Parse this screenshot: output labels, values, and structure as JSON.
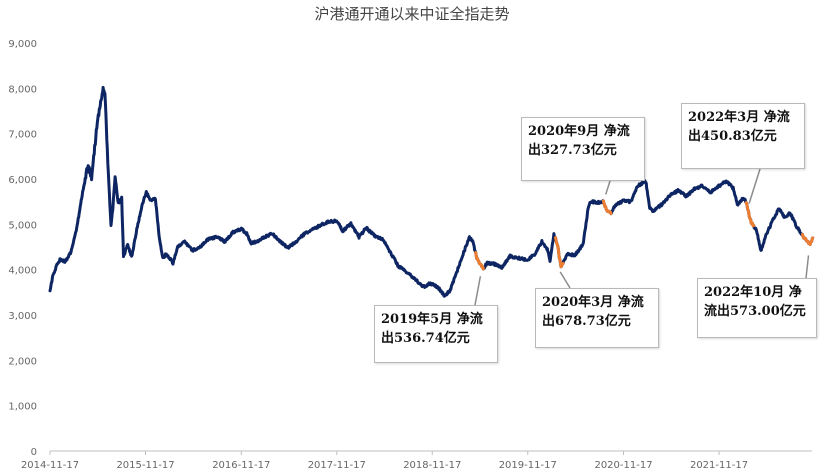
{
  "chart_data": {
    "type": "line",
    "title": "沪港通开通以来中证全指走势",
    "ylim": [
      0,
      9000
    ],
    "y_ticks": [
      "0",
      "1,000",
      "2,000",
      "3,000",
      "4,000",
      "5,000",
      "6,000",
      "7,000",
      "8,000",
      "9,000"
    ],
    "x_ticks": [
      "2014-11-17",
      "2015-11-17",
      "2016-11-17",
      "2017-11-17",
      "2018-11-17",
      "2019-11-17",
      "2020-11-17",
      "2021-11-17"
    ],
    "grid": false,
    "legend": "none",
    "colors": {
      "line": "#0d2562",
      "highlight": "#ed7d31",
      "axis": "#bfbfbf",
      "leader": "#8c8c8c"
    },
    "series": [
      {
        "values": [
          [
            "2014-11-17",
            3530
          ],
          [
            "2014-11-28",
            3860
          ],
          [
            "2014-12-10",
            4060
          ],
          [
            "2014-12-25",
            4220
          ],
          [
            "2015-01-15",
            4180
          ],
          [
            "2015-02-05",
            4380
          ],
          [
            "2015-03-01",
            4980
          ],
          [
            "2015-03-20",
            5650
          ],
          [
            "2015-04-10",
            6280
          ],
          [
            "2015-04-25",
            6050
          ],
          [
            "2015-05-15",
            7150
          ],
          [
            "2015-05-28",
            7650
          ],
          [
            "2015-06-08",
            7950
          ],
          [
            "2015-06-15",
            7900
          ],
          [
            "2015-06-22",
            6900
          ],
          [
            "2015-06-30",
            5900
          ],
          [
            "2015-07-08",
            4980
          ],
          [
            "2015-07-15",
            5350
          ],
          [
            "2015-07-24",
            6050
          ],
          [
            "2015-08-05",
            5450
          ],
          [
            "2015-08-18",
            5580
          ],
          [
            "2015-08-25",
            4300
          ],
          [
            "2015-09-10",
            4550
          ],
          [
            "2015-09-25",
            4280
          ],
          [
            "2015-10-15",
            4900
          ],
          [
            "2015-11-05",
            5450
          ],
          [
            "2015-11-20",
            5700
          ],
          [
            "2015-12-05",
            5550
          ],
          [
            "2015-12-25",
            5550
          ],
          [
            "2016-01-08",
            4750
          ],
          [
            "2016-01-22",
            4250
          ],
          [
            "2016-02-05",
            4350
          ],
          [
            "2016-03-01",
            4150
          ],
          [
            "2016-03-20",
            4500
          ],
          [
            "2016-04-15",
            4620
          ],
          [
            "2016-05-15",
            4420
          ],
          [
            "2016-06-15",
            4520
          ],
          [
            "2016-07-15",
            4680
          ],
          [
            "2016-08-15",
            4720
          ],
          [
            "2016-09-15",
            4620
          ],
          [
            "2016-10-15",
            4820
          ],
          [
            "2016-11-17",
            4900
          ],
          [
            "2016-12-10",
            4780
          ],
          [
            "2016-12-25",
            4580
          ],
          [
            "2017-01-15",
            4620
          ],
          [
            "2017-02-15",
            4720
          ],
          [
            "2017-03-15",
            4800
          ],
          [
            "2017-04-15",
            4620
          ],
          [
            "2017-05-15",
            4480
          ],
          [
            "2017-06-15",
            4620
          ],
          [
            "2017-07-15",
            4780
          ],
          [
            "2017-08-15",
            4880
          ],
          [
            "2017-09-15",
            4980
          ],
          [
            "2017-10-15",
            5050
          ],
          [
            "2017-11-17",
            5080
          ],
          [
            "2017-12-10",
            4850
          ],
          [
            "2018-01-10",
            5020
          ],
          [
            "2018-02-10",
            4720
          ],
          [
            "2018-03-10",
            4920
          ],
          [
            "2018-04-10",
            4750
          ],
          [
            "2018-05-10",
            4680
          ],
          [
            "2018-06-10",
            4380
          ],
          [
            "2018-07-10",
            4080
          ],
          [
            "2018-08-10",
            3950
          ],
          [
            "2018-09-10",
            3800
          ],
          [
            "2018-10-15",
            3620
          ],
          [
            "2018-11-10",
            3700
          ],
          [
            "2018-12-10",
            3600
          ],
          [
            "2019-01-04",
            3420
          ],
          [
            "2019-01-25",
            3550
          ],
          [
            "2019-02-25",
            4050
          ],
          [
            "2019-03-15",
            4350
          ],
          [
            "2019-04-08",
            4700
          ],
          [
            "2019-04-22",
            4620
          ],
          [
            "2019-05-06",
            4250
          ],
          [
            "2019-05-31",
            4020
          ],
          [
            "2019-06-15",
            4150
          ],
          [
            "2019-07-15",
            4120
          ],
          [
            "2019-08-10",
            4050
          ],
          [
            "2019-09-10",
            4300
          ],
          [
            "2019-10-15",
            4250
          ],
          [
            "2019-11-17",
            4220
          ],
          [
            "2019-12-15",
            4350
          ],
          [
            "2020-01-10",
            4620
          ],
          [
            "2020-01-31",
            4450
          ],
          [
            "2020-02-10",
            4200
          ],
          [
            "2020-02-25",
            4780
          ],
          [
            "2020-03-10",
            4550
          ],
          [
            "2020-03-23",
            4050
          ],
          [
            "2020-03-31",
            4150
          ],
          [
            "2020-04-15",
            4350
          ],
          [
            "2020-05-15",
            4320
          ],
          [
            "2020-06-15",
            4550
          ],
          [
            "2020-07-06",
            5400
          ],
          [
            "2020-07-15",
            5500
          ],
          [
            "2020-08-15",
            5480
          ],
          [
            "2020-09-01",
            5500
          ],
          [
            "2020-09-15",
            5280
          ],
          [
            "2020-09-30",
            5250
          ],
          [
            "2020-10-15",
            5420
          ],
          [
            "2020-11-17",
            5520
          ],
          [
            "2020-12-15",
            5500
          ],
          [
            "2021-01-10",
            5850
          ],
          [
            "2021-02-10",
            5950
          ],
          [
            "2021-02-25",
            5350
          ],
          [
            "2021-03-10",
            5300
          ],
          [
            "2021-04-15",
            5450
          ],
          [
            "2021-05-15",
            5650
          ],
          [
            "2021-06-15",
            5750
          ],
          [
            "2021-07-15",
            5620
          ],
          [
            "2021-08-15",
            5780
          ],
          [
            "2021-09-15",
            5850
          ],
          [
            "2021-10-15",
            5700
          ],
          [
            "2021-11-17",
            5850
          ],
          [
            "2021-12-15",
            5950
          ],
          [
            "2022-01-10",
            5800
          ],
          [
            "2022-01-28",
            5420
          ],
          [
            "2022-02-15",
            5580
          ],
          [
            "2022-03-01",
            5500
          ],
          [
            "2022-03-10",
            5250
          ],
          [
            "2022-03-20",
            5050
          ],
          [
            "2022-04-10",
            4850
          ],
          [
            "2022-04-26",
            4420
          ],
          [
            "2022-05-15",
            4750
          ],
          [
            "2022-06-15",
            5150
          ],
          [
            "2022-07-05",
            5350
          ],
          [
            "2022-07-25",
            5150
          ],
          [
            "2022-08-15",
            5250
          ],
          [
            "2022-09-10",
            4950
          ],
          [
            "2022-09-30",
            4780
          ],
          [
            "2022-10-15",
            4650
          ],
          [
            "2022-10-31",
            4550
          ],
          [
            "2022-11-10",
            4700
          ]
        ]
      }
    ],
    "highlights": [
      {
        "start": "2019-05-01",
        "end": "2019-05-31"
      },
      {
        "start": "2020-03-01",
        "end": "2020-03-31"
      },
      {
        "start": "2020-09-01",
        "end": "2020-09-30"
      },
      {
        "start": "2022-03-01",
        "end": "2022-03-31"
      },
      {
        "start": "2022-10-01",
        "end": "2022-11-10"
      }
    ],
    "annotations": [
      {
        "text": "2019年5月 净流出536.74亿元",
        "target": "2019-05-20"
      },
      {
        "text": "2020年3月 净流出678.73亿元",
        "target": "2020-03-20"
      },
      {
        "text": "2020年9月 净流出327.73亿元",
        "target": "2020-09-10"
      },
      {
        "text": "2022年3月 净流出450.83亿元",
        "target": "2022-03-12"
      },
      {
        "text": "2022年10月 净流出573.00亿元",
        "target": "2022-10-25"
      }
    ]
  }
}
